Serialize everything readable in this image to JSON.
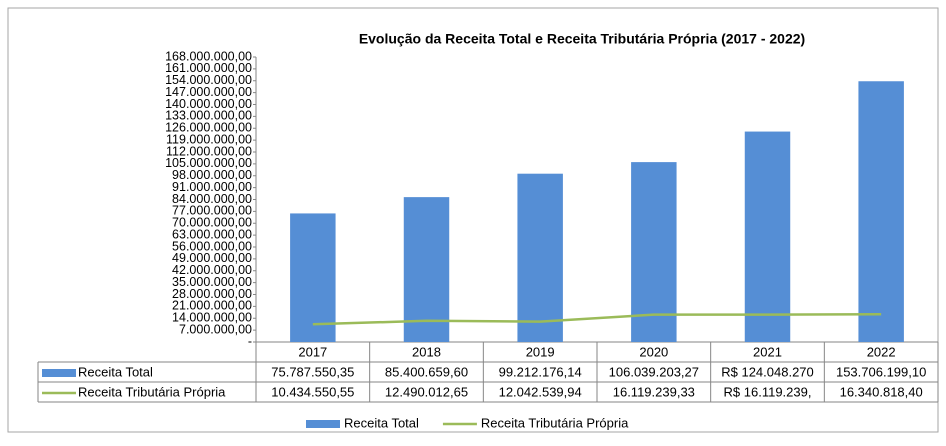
{
  "chart_data": {
    "type": "bar",
    "title": "Evolução da Receita Total e Receita Tributária Própria (2017 - 2022)",
    "categories": [
      "2017",
      "2018",
      "2019",
      "2020",
      "2021",
      "2022"
    ],
    "series": [
      {
        "name": "Receita Total",
        "type": "bar",
        "color": "#558ed5",
        "values": [
          75787550.35,
          85400659.6,
          99212176.14,
          106039203.27,
          124048270,
          153706199.1
        ],
        "value_labels": [
          "75.787.550,35",
          "85.400.659,60",
          "99.212.176,14",
          "106.039.203,27",
          "R$ 124.048.270",
          "153.706.199,10"
        ]
      },
      {
        "name": "Receita Tributária Própria",
        "type": "line",
        "color": "#9bbb59",
        "values": [
          10434550.55,
          12490012.65,
          12042539.94,
          16119239.33,
          16119239,
          16340818.4
        ],
        "value_labels": [
          "10.434.550,55",
          "12.490.012,65",
          "12.042.539,94",
          "16.119.239,33",
          "R$ 16.119.239,",
          "16.340.818,40"
        ]
      }
    ],
    "ylim": [
      0,
      168000000
    ],
    "yticks": [
      {
        "value": 0,
        "label": "-"
      },
      {
        "value": 7000000,
        "label": "7.000.000,00"
      },
      {
        "value": 14000000,
        "label": "14.000.000,00"
      },
      {
        "value": 21000000,
        "label": "21.000.000,00"
      },
      {
        "value": 28000000,
        "label": "28.000.000,00"
      },
      {
        "value": 35000000,
        "label": "35.000.000,00"
      },
      {
        "value": 42000000,
        "label": "42.000.000,00"
      },
      {
        "value": 49000000,
        "label": "49.000.000,00"
      },
      {
        "value": 56000000,
        "label": "56.000.000,00"
      },
      {
        "value": 63000000,
        "label": "63.000.000,00"
      },
      {
        "value": 70000000,
        "label": "70.000.000,00"
      },
      {
        "value": 77000000,
        "label": "77.000.000,00"
      },
      {
        "value": 84000000,
        "label": "84.000.000,00"
      },
      {
        "value": 91000000,
        "label": "91.000.000,00"
      },
      {
        "value": 98000000,
        "label": "98.000.000,00"
      },
      {
        "value": 105000000,
        "label": "105.000.000,00"
      },
      {
        "value": 112000000,
        "label": "112.000.000,00"
      },
      {
        "value": 119000000,
        "label": "119.000.000,00"
      },
      {
        "value": 126000000,
        "label": "126.000.000,00"
      },
      {
        "value": 133000000,
        "label": "133.000.000,00"
      },
      {
        "value": 140000000,
        "label": "140.000.000,00"
      },
      {
        "value": 147000000,
        "label": "147.000.000,00"
      },
      {
        "value": 154000000,
        "label": "154.000.000,00"
      },
      {
        "value": 161000000,
        "label": "161.000.000,00"
      },
      {
        "value": 168000000,
        "label": "168.000.000,00"
      }
    ],
    "grid": false
  }
}
